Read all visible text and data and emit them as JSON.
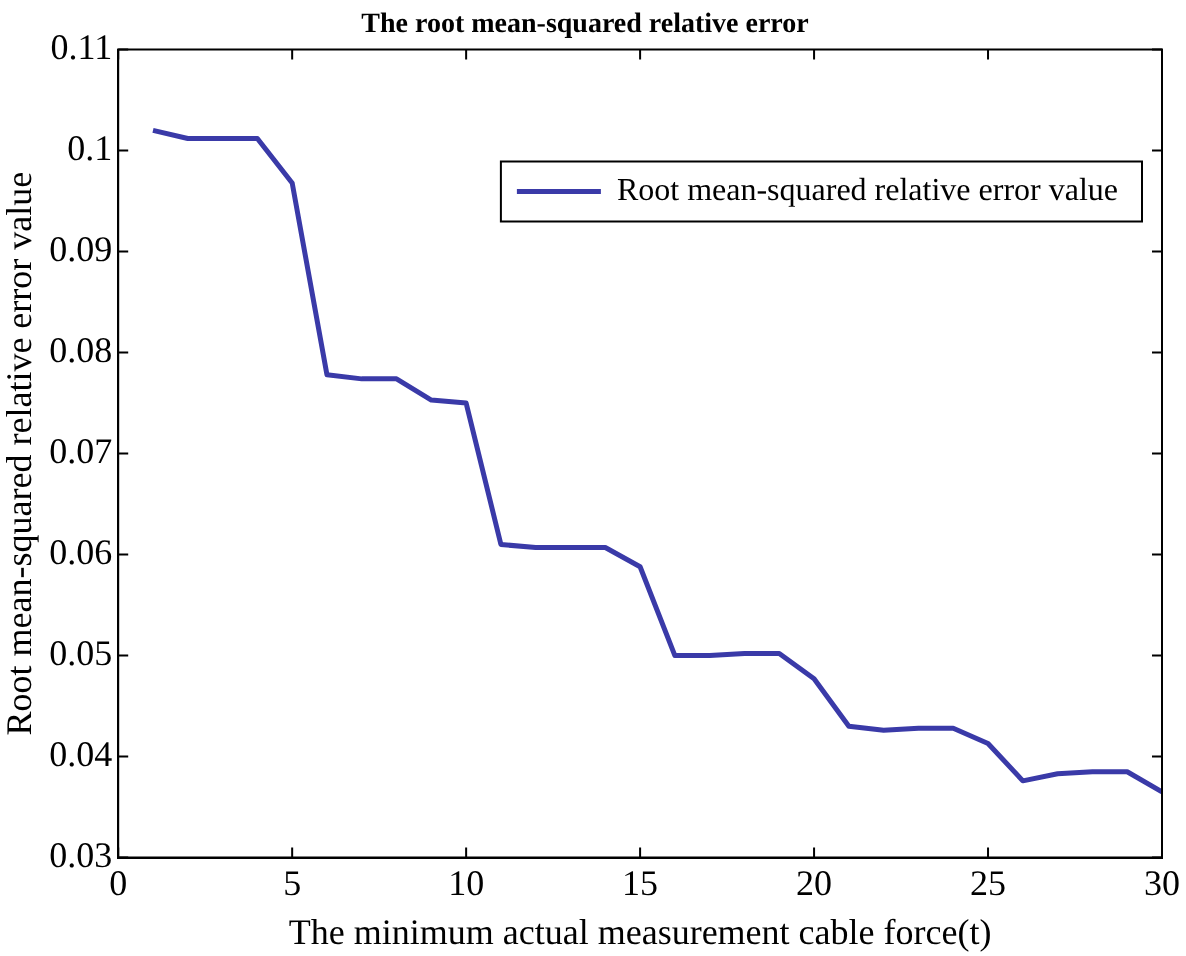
{
  "chart_data": {
    "type": "line",
    "title": "The root mean-squared relative error",
    "xlabel": "The minimum actual measurement cable force(t)",
    "ylabel": "Root mean-squared relative error value",
    "x": [
      1,
      2,
      3,
      4,
      5,
      6,
      7,
      8,
      9,
      10,
      11,
      12,
      13,
      14,
      15,
      16,
      17,
      18,
      19,
      20,
      21,
      22,
      23,
      24,
      25,
      26,
      27,
      28,
      29,
      30
    ],
    "series": [
      {
        "name": "Root mean-squared relative error value",
        "color": "#3a3aa8",
        "values": [
          0.102,
          0.1012,
          0.1012,
          0.1012,
          0.0968,
          0.0778,
          0.0774,
          0.0774,
          0.0753,
          0.075,
          0.061,
          0.0607,
          0.0607,
          0.0607,
          0.0588,
          0.05,
          0.05,
          0.0502,
          0.0502,
          0.0477,
          0.043,
          0.0426,
          0.0428,
          0.0428,
          0.0413,
          0.0376,
          0.0383,
          0.0385,
          0.0385,
          0.0365
        ]
      }
    ],
    "xlim": [
      0,
      30
    ],
    "xticks": [
      0,
      5,
      10,
      15,
      20,
      25,
      30
    ],
    "ylim": [
      0.03,
      0.11
    ],
    "yticks": [
      0.03,
      0.04,
      0.05,
      0.06,
      0.07,
      0.08,
      0.09,
      0.1,
      0.11
    ],
    "grid": false,
    "legend": "top right",
    "marker": "none",
    "line_style": "solid"
  }
}
